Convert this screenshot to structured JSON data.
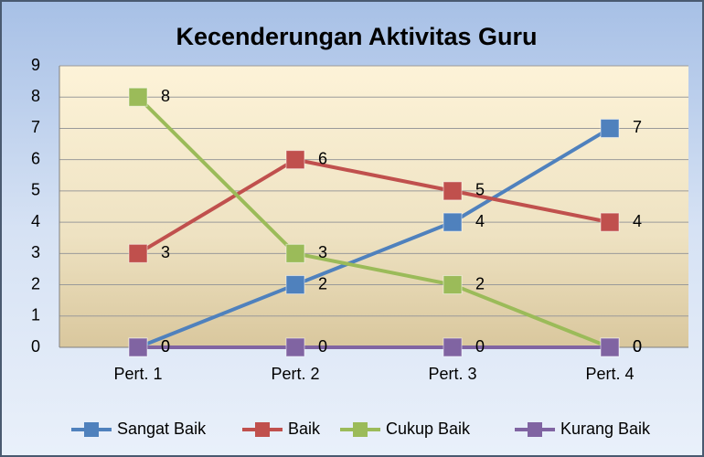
{
  "chart_data": {
    "type": "line",
    "title": "Kecenderungan Aktivitas Guru",
    "categories": [
      "Pert. 1",
      "Pert. 2",
      "Pert. 3",
      "Pert. 4"
    ],
    "series": [
      {
        "name": "Sangat Baik",
        "color": "#4f81bd",
        "values": [
          0,
          2,
          4,
          7
        ]
      },
      {
        "name": "Baik",
        "color": "#c0504d",
        "values": [
          3,
          6,
          5,
          4
        ]
      },
      {
        "name": "Cukup Baik",
        "color": "#9bbb59",
        "values": [
          8,
          3,
          2,
          0
        ]
      },
      {
        "name": "Kurang Baik",
        "color": "#8064a2",
        "values": [
          0,
          0,
          0,
          0
        ]
      }
    ],
    "ylim": [
      0,
      9
    ],
    "yticks": [
      0,
      1,
      2,
      3,
      4,
      5,
      6,
      7,
      8,
      9
    ],
    "grid": true,
    "legend": "bottom"
  }
}
